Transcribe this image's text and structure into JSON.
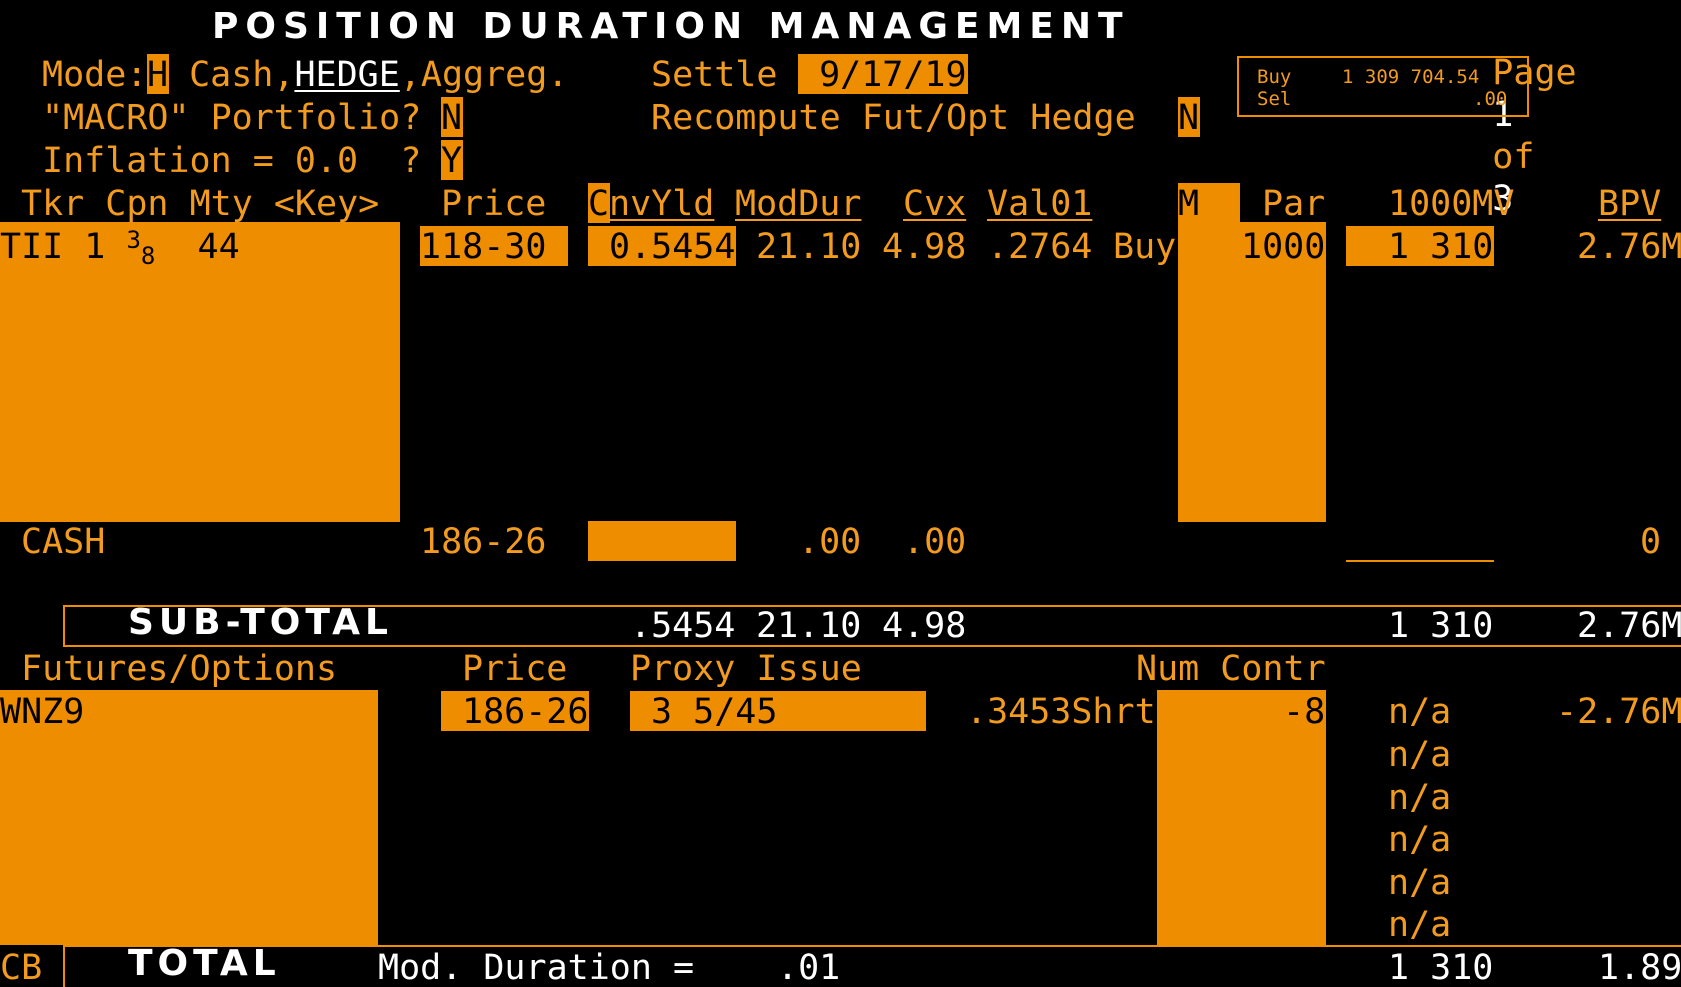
{
  "header": {
    "title": "POSITION DURATION MANAGEMENT",
    "page_prefix": "Page",
    "page_num": "1",
    "page_of": "of",
    "page_total": "3"
  },
  "mode": {
    "label": "Mode:",
    "value": "H",
    "cash": " Cash,",
    "hedge": "HEDGE",
    "aggreg": ",Aggreg."
  },
  "settle": {
    "label": "Settle",
    "value": " 9/17/19"
  },
  "macro": {
    "label": "\"MACRO\" Portfolio?",
    "value": "N"
  },
  "recompute": {
    "label": "Recompute Fut/Opt Hedge",
    "value": "N"
  },
  "inflation": {
    "label": "Inflation = 0.0  ?",
    "value": "Y"
  },
  "buysell": {
    "buy_label": "Buy",
    "buy_value": "1 309 704.54",
    "sel_label": "Sel",
    "sel_value": ".00"
  },
  "cols": {
    "tkr": "Tkr Cpn Mty <Key>",
    "price": "Price",
    "cnv_c": "C",
    "cnv_rest": "nvYld",
    "moddur": "ModDur",
    "cvx": "Cvx",
    "val01": "Val01",
    "m": "M",
    "par": "Par",
    "mv": "1000MV",
    "bpv": "BPV"
  },
  "position": {
    "ticker": "TII 1",
    "cpn_num": "3",
    "cpn_den": "8",
    "mty": "44",
    "price": "118-30",
    "yield": "0.5454",
    "moddur": "21.10",
    "cvx": "4.98",
    "val01": ".2764",
    "side": "Buy",
    "par": "1000",
    "mv": "1 310",
    "bpv": "2.76M"
  },
  "cash": {
    "label": "CASH",
    "price": "186-26",
    "moddur": ".00",
    "cvx": ".00",
    "bpv": "0"
  },
  "subtotal": {
    "label": "SUB-TOTAL",
    "yield": ".5454",
    "moddur": "21.10",
    "cvx": "4.98",
    "mv": "1 310",
    "bpv": "2.76M"
  },
  "futures": {
    "header": "Futures/Options",
    "price_header": "Price",
    "proxy_header": "Proxy Issue",
    "contr_header": "Num Contr",
    "row": {
      "ticker": "WNZ9",
      "price": "186-26",
      "proxy": "3 5/45",
      "ratio": ".3453Shrt",
      "contracts": "-8",
      "mv": "n/a",
      "bpv": "-2.76M"
    },
    "na_rows": [
      "n/a",
      "n/a",
      "n/a",
      "n/a",
      "n/a"
    ]
  },
  "total": {
    "cb": "CB",
    "label": "TOTAL",
    "dur_label": "Mod. Duration =",
    "dur_value": ".01",
    "mv": "1 310",
    "bpv": "1.89"
  }
}
